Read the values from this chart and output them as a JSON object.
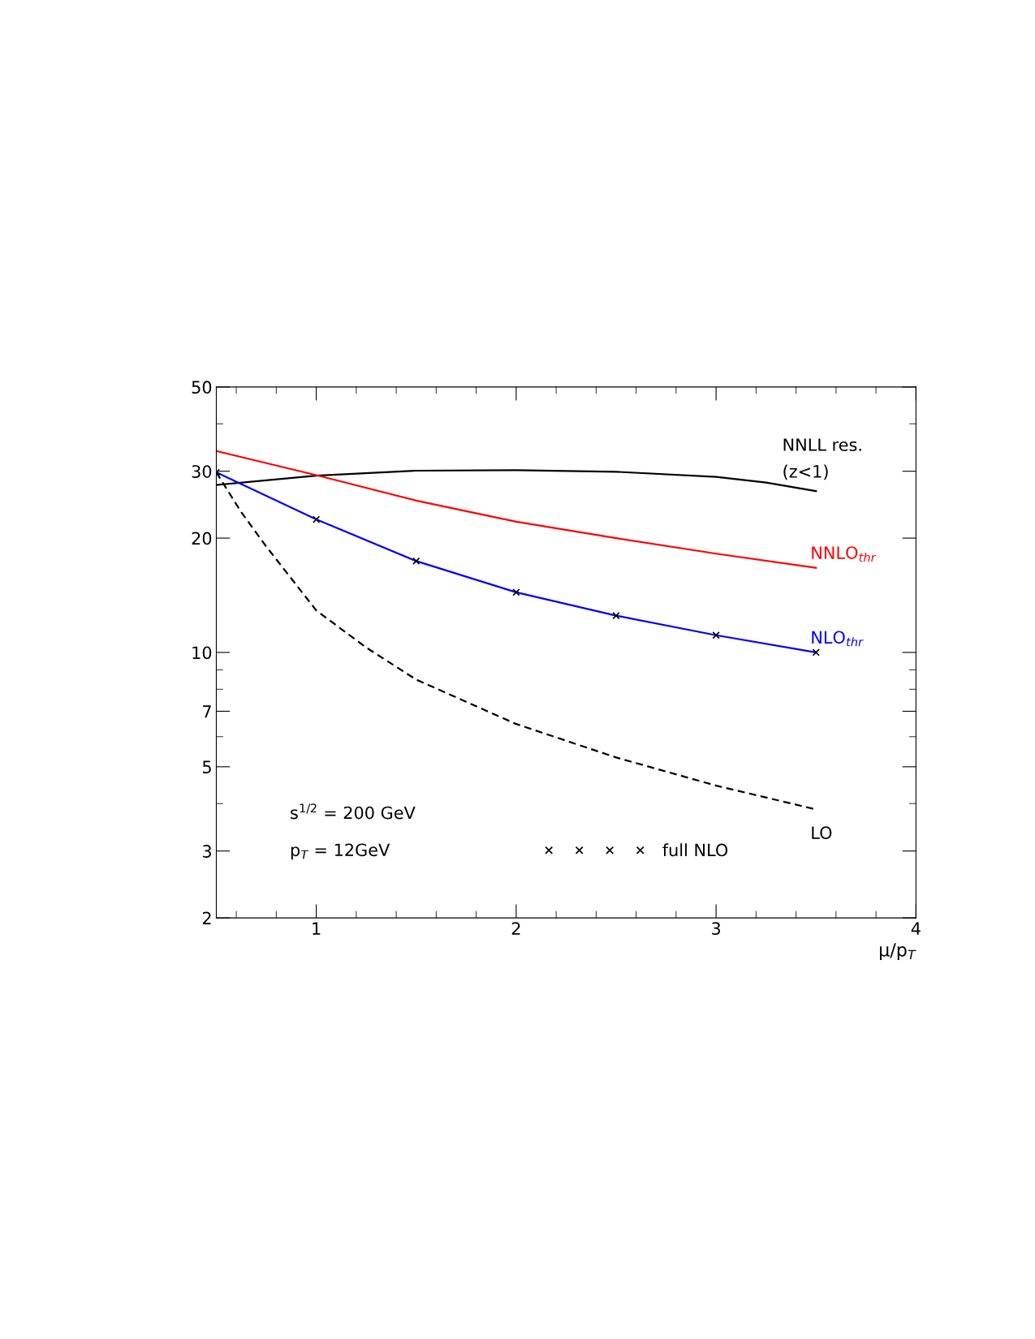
{
  "chart_data": {
    "type": "line",
    "xlabel": "μ/p$_{T}$",
    "log": "y",
    "xlim": [
      0.5,
      4
    ],
    "xticks": [
      1,
      2,
      3,
      4
    ],
    "ylim": [
      2,
      50
    ],
    "yticks": [
      2,
      3,
      5,
      7,
      10,
      20,
      30,
      50
    ],
    "grid": false,
    "legend": "bottom",
    "marker": "none",
    "series": [
      {
        "name": "NNLL res.\n(z<1)",
        "color": "#000000",
        "line_style": "solid",
        "x": [
          0.5,
          1.0,
          1.5,
          2.0,
          2.5,
          3.0,
          3.25,
          3.5
        ],
        "values": [
          27.6,
          29.2,
          30.1,
          30.2,
          29.9,
          29.0,
          28.0,
          26.6
        ]
      },
      {
        "name": "NNLO$_{thr}$",
        "color": "#ff0000",
        "line_style": "solid",
        "x": [
          0.5,
          1.0,
          1.5,
          2.0,
          2.5,
          3.0,
          3.5
        ],
        "values": [
          33.9,
          29.3,
          25.1,
          22.1,
          20.0,
          18.2,
          16.7
        ]
      },
      {
        "name": "NLO$_{thr}$",
        "color": "#0000ff",
        "line_style": "solid",
        "x": [
          0.5,
          1.0,
          1.5,
          2.0,
          2.5,
          3.0,
          3.5
        ],
        "values": [
          29.8,
          22.4,
          17.4,
          14.4,
          12.5,
          11.1,
          10.0
        ]
      },
      {
        "name": "LO",
        "color": "#000000",
        "line_style": "dashed",
        "x": [
          0.5,
          0.625,
          0.75,
          1.0,
          1.25,
          1.5,
          2.0,
          2.5,
          3.0,
          3.5
        ],
        "values": [
          29.8,
          23.4,
          19.0,
          12.9,
          10.3,
          8.48,
          6.48,
          5.29,
          4.46,
          3.86
        ]
      },
      {
        "name": "full NLO",
        "type": "scatter",
        "marker": "cross",
        "color": "#000000",
        "x": [
          0.5,
          1.0,
          1.5,
          2.0,
          2.5,
          3.0,
          3.5
        ],
        "values": [
          29.8,
          22.4,
          17.4,
          14.4,
          12.5,
          11.1,
          10.0
        ]
      }
    ],
    "annotations": [
      "s$^{1/2}$ = 200 GeV",
      "p$_{T}$ = 12GeV"
    ]
  }
}
